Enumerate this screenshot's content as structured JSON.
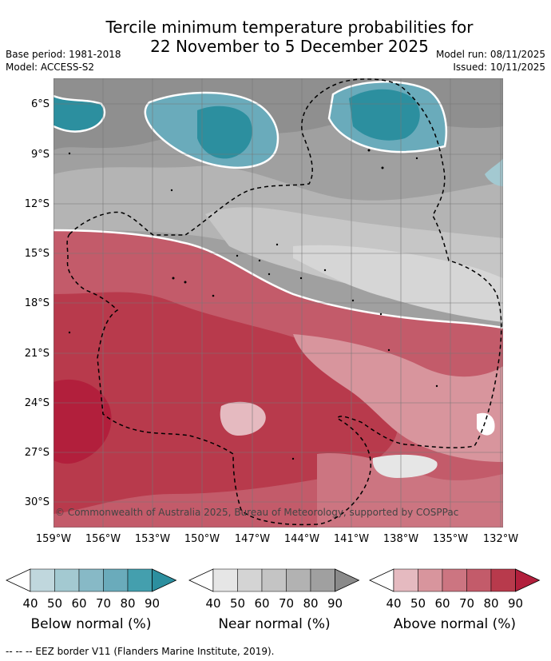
{
  "title_line1": "Tercile minimum temperature probabilities for",
  "title_line2": "22 November to 5 December 2025",
  "meta": {
    "base_period": "Base period: 1981-2018",
    "model": "Model: ACCESS-S2",
    "model_run": "Model run: 08/11/2025",
    "issued": "Issued: 10/11/2025"
  },
  "map": {
    "lat_labels": [
      "6°S",
      "9°S",
      "12°S",
      "15°S",
      "18°S",
      "21°S",
      "24°S",
      "27°S",
      "30°S"
    ],
    "lon_labels": [
      "159°W",
      "156°W",
      "153°W",
      "150°W",
      "147°W",
      "144°W",
      "141°W",
      "138°W",
      "135°W",
      "132°W"
    ],
    "copyright": "© Commonwealth of Australia 2025, Bureau of Meteorology, supported by COSPPac"
  },
  "legend": {
    "ticks": [
      "40",
      "50",
      "60",
      "70",
      "80",
      "90"
    ],
    "below": {
      "title": "Below normal (%)",
      "colors": [
        "#ffffff",
        "#c0d7dd",
        "#a3c9d1",
        "#87b9c6",
        "#6aabbb",
        "#449fae",
        "#2c8f9f"
      ]
    },
    "near": {
      "title": "Near normal (%)",
      "colors": [
        "#ffffff",
        "#e6e6e6",
        "#d4d4d4",
        "#c4c4c4",
        "#b2b2b2",
        "#a0a0a0",
        "#8a8a8a"
      ]
    },
    "above": {
      "title": "Above normal (%)",
      "colors": [
        "#ffffff",
        "#e5bac0",
        "#d8959d",
        "#cc7581",
        "#c35b6a",
        "#b83a4c",
        "#b21f3c"
      ]
    }
  },
  "footer": "--  --  -- EEZ border V11 (Flanders Marine Institute, 2019)."
}
